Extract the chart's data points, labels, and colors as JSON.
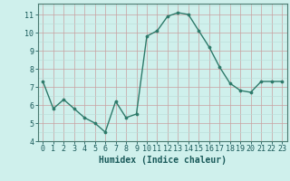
{
  "x": [
    0,
    1,
    2,
    3,
    4,
    5,
    6,
    7,
    8,
    9,
    10,
    11,
    12,
    13,
    14,
    15,
    16,
    17,
    18,
    19,
    20,
    21,
    22,
    23
  ],
  "y": [
    7.3,
    5.8,
    6.3,
    5.8,
    5.3,
    5.0,
    4.5,
    6.2,
    5.3,
    5.5,
    9.8,
    10.1,
    10.9,
    11.1,
    11.0,
    10.1,
    9.2,
    8.1,
    7.2,
    6.8,
    6.7,
    7.3,
    7.3,
    7.3
  ],
  "line_color": "#2d7a6a",
  "marker_color": "#2d7a6a",
  "bg_color": "#cff0ec",
  "grid_color_major": "#c8a0a0",
  "grid_color_minor": "#b8dcd8",
  "xlabel": "Humidex (Indice chaleur)",
  "xlabel_fontsize": 7,
  "tick_fontsize": 6,
  "ylim": [
    4,
    11.6
  ],
  "xlim": [
    -0.5,
    23.5
  ],
  "yticks": [
    4,
    5,
    6,
    7,
    8,
    9,
    10,
    11
  ],
  "xticks": [
    0,
    1,
    2,
    3,
    4,
    5,
    6,
    7,
    8,
    9,
    10,
    11,
    12,
    13,
    14,
    15,
    16,
    17,
    18,
    19,
    20,
    21,
    22,
    23
  ],
  "marker_size": 2.2,
  "line_width": 1.0
}
